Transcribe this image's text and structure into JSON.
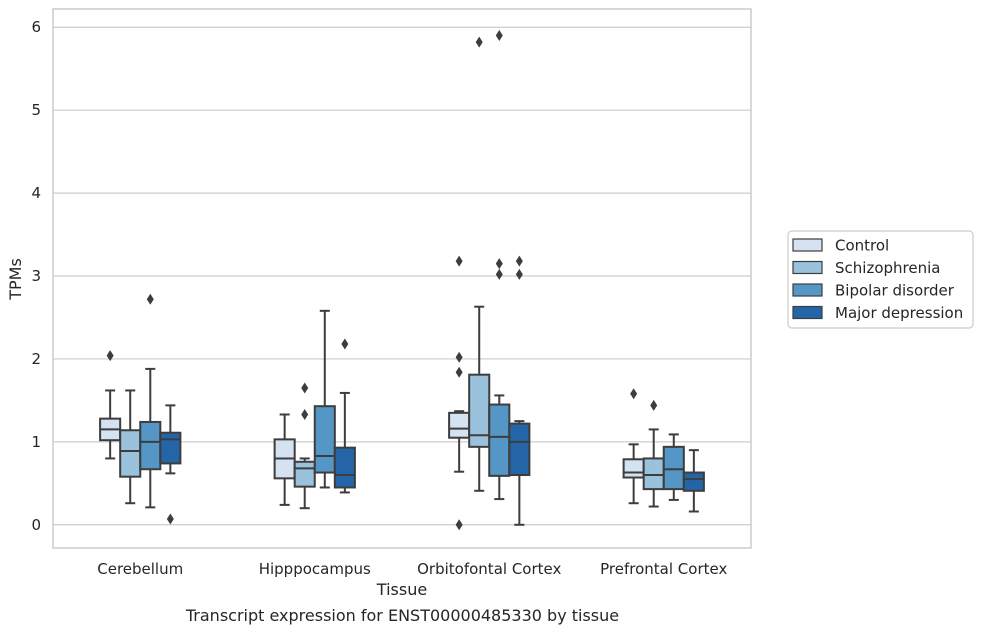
{
  "chart_data": {
    "type": "box",
    "caption": "Transcript expression for ENST00000485330 by tissue",
    "xlabel": "Tissue",
    "ylabel": "TPMs",
    "ylim": [
      -0.28,
      6.22
    ],
    "yticks": [
      0,
      1,
      2,
      3,
      4,
      5,
      6
    ],
    "grid": "horizontal",
    "legend_position": "right",
    "categories": [
      "Cerebellum",
      "Hipppocampus",
      "Orbitofontal Cortex",
      "Prefrontal Cortex"
    ],
    "series": [
      {
        "name": "Control",
        "color": "#d4e2f2",
        "boxes": [
          {
            "whislo": 0.8,
            "q1": 1.02,
            "med": 1.15,
            "q3": 1.28,
            "whishi": 1.62,
            "fliers": [
              2.04
            ]
          },
          {
            "whislo": 0.24,
            "q1": 0.56,
            "med": 0.8,
            "q3": 1.03,
            "whishi": 1.33,
            "fliers": []
          },
          {
            "whislo": 0.64,
            "q1": 1.05,
            "med": 1.16,
            "q3": 1.35,
            "whishi": 1.37,
            "fliers": [
              0.0,
              1.84,
              2.02,
              3.18
            ]
          },
          {
            "whislo": 0.26,
            "q1": 0.57,
            "med": 0.63,
            "q3": 0.79,
            "whishi": 0.97,
            "fliers": [
              1.58
            ]
          }
        ]
      },
      {
        "name": "Schizophrenia",
        "color": "#9ac2dd",
        "boxes": [
          {
            "whislo": 0.26,
            "q1": 0.58,
            "med": 0.89,
            "q3": 1.14,
            "whishi": 1.62,
            "fliers": []
          },
          {
            "whislo": 0.2,
            "q1": 0.46,
            "med": 0.68,
            "q3": 0.76,
            "whishi": 0.8,
            "fliers": [
              1.33,
              1.65
            ]
          },
          {
            "whislo": 0.41,
            "q1": 0.94,
            "med": 1.08,
            "q3": 1.81,
            "whishi": 2.63,
            "fliers": [
              5.82
            ]
          },
          {
            "whislo": 0.22,
            "q1": 0.43,
            "med": 0.6,
            "q3": 0.8,
            "whishi": 1.15,
            "fliers": [
              1.44
            ]
          }
        ]
      },
      {
        "name": "Bipolar disorder",
        "color": "#5497c7",
        "boxes": [
          {
            "whislo": 0.21,
            "q1": 0.67,
            "med": 1.0,
            "q3": 1.24,
            "whishi": 1.88,
            "fliers": [
              2.72
            ]
          },
          {
            "whislo": 0.45,
            "q1": 0.63,
            "med": 0.83,
            "q3": 1.43,
            "whishi": 2.58,
            "fliers": []
          },
          {
            "whislo": 0.31,
            "q1": 0.59,
            "med": 1.06,
            "q3": 1.45,
            "whishi": 1.56,
            "fliers": [
              3.02,
              3.15,
              5.9
            ]
          },
          {
            "whislo": 0.3,
            "q1": 0.43,
            "med": 0.67,
            "q3": 0.94,
            "whishi": 1.09,
            "fliers": []
          }
        ]
      },
      {
        "name": "Major depression",
        "color": "#2465a8",
        "boxes": [
          {
            "whislo": 0.62,
            "q1": 0.74,
            "med": 1.03,
            "q3": 1.11,
            "whishi": 1.44,
            "fliers": [
              0.07
            ]
          },
          {
            "whislo": 0.39,
            "q1": 0.45,
            "med": 0.6,
            "q3": 0.93,
            "whishi": 1.59,
            "fliers": [
              2.18
            ]
          },
          {
            "whislo": 0.0,
            "q1": 0.6,
            "med": 1.0,
            "q3": 1.22,
            "whishi": 1.25,
            "fliers": [
              3.02,
              3.18
            ]
          },
          {
            "whislo": 0.16,
            "q1": 0.41,
            "med": 0.55,
            "q3": 0.63,
            "whishi": 0.9,
            "fliers": []
          }
        ]
      }
    ]
  }
}
